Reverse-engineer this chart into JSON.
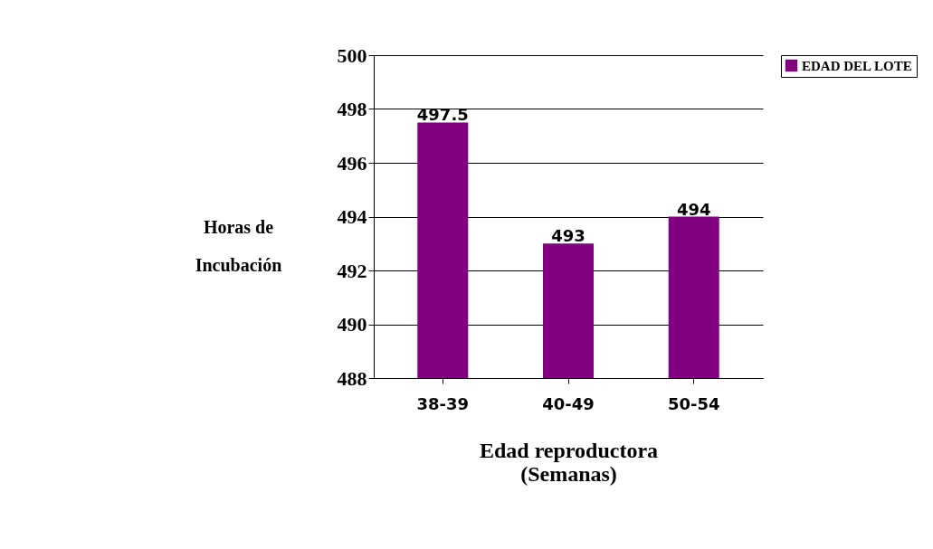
{
  "chart_data": {
    "type": "bar",
    "xlabel": "Edad reproductora\n(Semanas)",
    "ylabel": "Horas de\nIncubación",
    "categories": [
      "38-39",
      "40-49",
      "50-54"
    ],
    "series": [
      {
        "name": "EDAD DEL LOTE",
        "color": "#800080",
        "values": [
          497.5,
          493,
          494
        ]
      }
    ],
    "ylim": [
      488,
      500
    ],
    "yticks": [
      488,
      490,
      492,
      494,
      496,
      498,
      500
    ],
    "grid": "y",
    "legend": "right",
    "data_labels": true
  }
}
